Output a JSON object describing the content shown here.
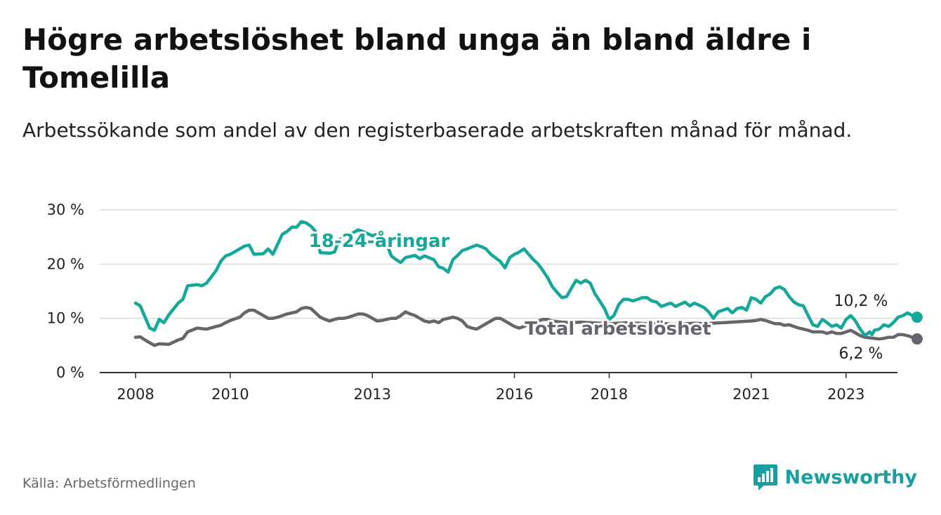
{
  "title": "Högre arbetslöshet bland unga än bland äldre i Tomelilla",
  "subtitle": "Arbetssökande som andel av den registerbaserade arbetskraften månad för månad.",
  "source": "Källa: Arbetsförmedlingen",
  "brand": "Newsworthy",
  "colors": {
    "youth": "#14a89a",
    "total": "#66646c",
    "grid": "#dcdcdc",
    "axis": "#333333",
    "brand": "#1a9fa0"
  },
  "chart_data": {
    "type": "line",
    "title": "Högre arbetslöshet bland unga än bland äldre i Tomelilla",
    "xlabel": "",
    "ylabel": "",
    "xlim": [
      2007.8,
      2023.75
    ],
    "ylim": [
      0,
      30
    ],
    "yticks": [
      0,
      10,
      20,
      30
    ],
    "ytick_labels": [
      "0 %",
      "10 %",
      "20 %",
      "30 %"
    ],
    "xticks": [
      2008,
      2010,
      2013,
      2016,
      2018,
      2021,
      2023
    ],
    "xtick_labels": [
      "2008",
      "2010",
      "2013",
      "2016",
      "2018",
      "2021",
      "2023"
    ],
    "series": [
      {
        "name": "18-24-åringar",
        "label": "18-24-åringar",
        "end_label": "10,2 %",
        "points": [
          [
            2008.0,
            12.8
          ],
          [
            2008.1,
            12.3
          ],
          [
            2008.3,
            8.2
          ],
          [
            2008.4,
            7.8
          ],
          [
            2008.5,
            9.8
          ],
          [
            2008.6,
            9.2
          ],
          [
            2008.7,
            10.6
          ],
          [
            2008.9,
            12.8
          ],
          [
            2009.0,
            13.5
          ],
          [
            2009.1,
            16.0
          ],
          [
            2009.3,
            16.2
          ],
          [
            2009.4,
            16.0
          ],
          [
            2009.5,
            16.5
          ],
          [
            2009.7,
            18.8
          ],
          [
            2009.8,
            20.5
          ],
          [
            2009.9,
            21.5
          ],
          [
            2010.0,
            21.8
          ],
          [
            2010.2,
            22.8
          ],
          [
            2010.3,
            23.3
          ],
          [
            2010.4,
            23.5
          ],
          [
            2010.5,
            21.8
          ],
          [
            2010.7,
            21.9
          ],
          [
            2010.8,
            22.8
          ],
          [
            2010.9,
            21.8
          ],
          [
            2011.1,
            25.5
          ],
          [
            2011.2,
            26.0
          ],
          [
            2011.3,
            26.8
          ],
          [
            2011.4,
            26.8
          ],
          [
            2011.5,
            27.8
          ],
          [
            2011.6,
            27.6
          ],
          [
            2011.7,
            27.0
          ],
          [
            2011.8,
            26.0
          ],
          [
            2011.9,
            22.1
          ],
          [
            2012.1,
            22.0
          ],
          [
            2012.2,
            22.2
          ],
          [
            2012.3,
            24.5
          ],
          [
            2012.5,
            25.4
          ],
          [
            2012.6,
            25.8
          ],
          [
            2012.7,
            26.3
          ],
          [
            2012.8,
            26.0
          ],
          [
            2013.0,
            25.2
          ],
          [
            2013.1,
            25.5
          ],
          [
            2013.3,
            23.8
          ],
          [
            2013.4,
            21.5
          ],
          [
            2013.5,
            20.8
          ],
          [
            2013.6,
            20.3
          ],
          [
            2013.7,
            21.2
          ],
          [
            2013.9,
            21.6
          ],
          [
            2014.0,
            21.0
          ],
          [
            2014.1,
            21.5
          ],
          [
            2014.3,
            20.8
          ],
          [
            2014.4,
            19.5
          ],
          [
            2014.5,
            19.2
          ],
          [
            2014.6,
            18.5
          ],
          [
            2014.7,
            20.8
          ],
          [
            2014.8,
            21.6
          ],
          [
            2014.9,
            22.5
          ],
          [
            2015.0,
            22.8
          ],
          [
            2015.2,
            23.5
          ],
          [
            2015.3,
            23.2
          ],
          [
            2015.4,
            22.8
          ],
          [
            2015.5,
            21.8
          ],
          [
            2015.7,
            20.5
          ],
          [
            2015.8,
            19.3
          ],
          [
            2015.9,
            21.2
          ],
          [
            2016.0,
            21.8
          ],
          [
            2016.1,
            22.2
          ],
          [
            2016.2,
            22.8
          ],
          [
            2016.4,
            20.8
          ],
          [
            2016.5,
            20.0
          ],
          [
            2016.6,
            18.8
          ],
          [
            2016.7,
            17.5
          ],
          [
            2016.8,
            15.8
          ],
          [
            2016.9,
            14.8
          ],
          [
            2017.0,
            13.8
          ],
          [
            2017.1,
            14.0
          ],
          [
            2017.2,
            15.5
          ],
          [
            2017.3,
            17.0
          ],
          [
            2017.4,
            16.5
          ],
          [
            2017.5,
            17.0
          ],
          [
            2017.6,
            16.5
          ],
          [
            2017.7,
            14.5
          ],
          [
            2017.8,
            13.2
          ],
          [
            2017.9,
            11.8
          ],
          [
            2018.0,
            9.8
          ],
          [
            2018.1,
            10.5
          ],
          [
            2018.2,
            12.5
          ],
          [
            2018.3,
            13.5
          ],
          [
            2018.4,
            13.5
          ],
          [
            2018.5,
            13.2
          ],
          [
            2018.6,
            13.5
          ],
          [
            2018.7,
            13.8
          ],
          [
            2018.8,
            13.8
          ],
          [
            2018.9,
            13.2
          ],
          [
            2019.0,
            13.0
          ],
          [
            2019.1,
            12.2
          ],
          [
            2019.2,
            12.5
          ],
          [
            2019.3,
            12.8
          ],
          [
            2019.4,
            12.2
          ],
          [
            2019.5,
            12.6
          ],
          [
            2019.6,
            13.0
          ],
          [
            2019.7,
            12.3
          ],
          [
            2019.8,
            12.8
          ],
          [
            2019.9,
            12.4
          ],
          [
            2020.0,
            12.0
          ],
          [
            2020.1,
            11.2
          ],
          [
            2020.2,
            10.0
          ],
          [
            2020.3,
            11.2
          ],
          [
            2020.4,
            11.5
          ],
          [
            2020.5,
            11.8
          ],
          [
            2020.6,
            11.0
          ],
          [
            2020.7,
            11.8
          ],
          [
            2020.8,
            12.0
          ],
          [
            2020.9,
            11.5
          ],
          [
            2021.0,
            13.8
          ],
          [
            2021.1,
            13.5
          ],
          [
            2021.2,
            12.8
          ],
          [
            2021.3,
            14.0
          ],
          [
            2021.4,
            14.5
          ],
          [
            2021.5,
            15.5
          ],
          [
            2021.6,
            15.8
          ],
          [
            2021.7,
            15.3
          ],
          [
            2021.8,
            14.0
          ],
          [
            2021.9,
            13.0
          ],
          [
            2022.0,
            12.5
          ],
          [
            2022.1,
            12.3
          ],
          [
            2022.2,
            10.5
          ],
          [
            2022.3,
            8.8
          ],
          [
            2022.4,
            8.5
          ],
          [
            2022.5,
            9.8
          ],
          [
            2022.6,
            9.2
          ],
          [
            2022.7,
            8.5
          ],
          [
            2022.8,
            8.8
          ],
          [
            2022.9,
            8.2
          ],
          [
            2023.0,
            9.8
          ],
          [
            2023.1,
            10.5
          ],
          [
            2023.2,
            9.5
          ],
          [
            2023.3,
            8.0
          ],
          [
            2023.4,
            6.8
          ],
          [
            2023.5,
            7.5
          ],
          [
            2023.55,
            7.0
          ],
          [
            2023.6,
            7.8
          ],
          [
            2023.7,
            8.0
          ],
          [
            2023.8,
            8.8
          ],
          [
            2023.9,
            8.5
          ],
          [
            2024.0,
            9.2
          ],
          [
            2024.1,
            10.2
          ],
          [
            2024.2,
            10.5
          ],
          [
            2024.3,
            11.0
          ],
          [
            2024.4,
            10.5
          ],
          [
            2024.5,
            10.2
          ]
        ]
      },
      {
        "name": "Total arbetslöshet",
        "label": "Total arbetslöshet",
        "end_label": "6,2 %",
        "points": [
          [
            2008.0,
            6.5
          ],
          [
            2008.1,
            6.6
          ],
          [
            2008.2,
            6.0
          ],
          [
            2008.3,
            5.5
          ],
          [
            2008.4,
            5.0
          ],
          [
            2008.5,
            5.3
          ],
          [
            2008.7,
            5.2
          ],
          [
            2008.8,
            5.6
          ],
          [
            2008.9,
            6.0
          ],
          [
            2009.0,
            6.3
          ],
          [
            2009.1,
            7.5
          ],
          [
            2009.3,
            8.2
          ],
          [
            2009.4,
            8.1
          ],
          [
            2009.5,
            8.0
          ],
          [
            2009.7,
            8.5
          ],
          [
            2009.8,
            8.7
          ],
          [
            2009.9,
            9.2
          ],
          [
            2010.0,
            9.6
          ],
          [
            2010.2,
            10.2
          ],
          [
            2010.3,
            11.0
          ],
          [
            2010.4,
            11.5
          ],
          [
            2010.5,
            11.5
          ],
          [
            2010.7,
            10.5
          ],
          [
            2010.8,
            10.0
          ],
          [
            2010.9,
            10.0
          ],
          [
            2011.0,
            10.2
          ],
          [
            2011.2,
            10.8
          ],
          [
            2011.3,
            11.0
          ],
          [
            2011.4,
            11.2
          ],
          [
            2011.5,
            11.8
          ],
          [
            2011.6,
            12.0
          ],
          [
            2011.7,
            11.8
          ],
          [
            2011.8,
            11.0
          ],
          [
            2011.9,
            10.2
          ],
          [
            2012.0,
            9.8
          ],
          [
            2012.1,
            9.5
          ],
          [
            2012.2,
            9.8
          ],
          [
            2012.3,
            10.0
          ],
          [
            2012.4,
            10.0
          ],
          [
            2012.5,
            10.2
          ],
          [
            2012.6,
            10.5
          ],
          [
            2012.7,
            10.8
          ],
          [
            2012.8,
            10.8
          ],
          [
            2012.9,
            10.5
          ],
          [
            2013.0,
            10.0
          ],
          [
            2013.1,
            9.5
          ],
          [
            2013.2,
            9.6
          ],
          [
            2013.3,
            9.8
          ],
          [
            2013.4,
            10.0
          ],
          [
            2013.5,
            10.0
          ],
          [
            2013.6,
            10.5
          ],
          [
            2013.7,
            11.2
          ],
          [
            2013.8,
            10.8
          ],
          [
            2013.9,
            10.5
          ],
          [
            2014.0,
            10.0
          ],
          [
            2014.1,
            9.5
          ],
          [
            2014.2,
            9.3
          ],
          [
            2014.3,
            9.5
          ],
          [
            2014.4,
            9.2
          ],
          [
            2014.5,
            9.8
          ],
          [
            2014.6,
            10.0
          ],
          [
            2014.7,
            10.2
          ],
          [
            2014.8,
            10.0
          ],
          [
            2014.9,
            9.5
          ],
          [
            2015.0,
            8.5
          ],
          [
            2015.1,
            8.2
          ],
          [
            2015.2,
            8.0
          ],
          [
            2015.3,
            8.5
          ],
          [
            2015.4,
            9.0
          ],
          [
            2015.5,
            9.5
          ],
          [
            2015.6,
            10.0
          ],
          [
            2015.7,
            10.0
          ],
          [
            2015.8,
            9.5
          ],
          [
            2015.9,
            9.0
          ],
          [
            2016.0,
            8.5
          ],
          [
            2016.1,
            8.2
          ],
          [
            2016.2,
            8.5
          ],
          [
            2016.3,
            9.0
          ],
          [
            2016.4,
            9.2
          ],
          [
            2016.5,
            9.5
          ],
          [
            2016.6,
            9.8
          ],
          [
            2016.7,
            9.8
          ],
          [
            2016.8,
            9.5
          ],
          [
            2016.9,
            9.4
          ],
          [
            2017.0,
            9.3
          ],
          [
            2017.2,
            9.2
          ],
          [
            2017.4,
            9.3
          ],
          [
            2017.6,
            9.2
          ],
          [
            2017.8,
            9.1
          ],
          [
            2018.0,
            9.0
          ],
          [
            2018.2,
            9.1
          ],
          [
            2018.4,
            9.2
          ],
          [
            2018.6,
            9.1
          ],
          [
            2018.8,
            9.0
          ],
          [
            2019.0,
            9.1
          ],
          [
            2019.2,
            9.0
          ],
          [
            2019.4,
            8.9
          ],
          [
            2019.6,
            9.0
          ],
          [
            2019.8,
            9.1
          ],
          [
            2020.0,
            9.0
          ],
          [
            2020.2,
            9.1
          ],
          [
            2020.4,
            9.2
          ],
          [
            2020.6,
            9.3
          ],
          [
            2020.8,
            9.4
          ],
          [
            2021.0,
            9.5
          ],
          [
            2021.1,
            9.6
          ],
          [
            2021.2,
            9.8
          ],
          [
            2021.3,
            9.6
          ],
          [
            2021.4,
            9.3
          ],
          [
            2021.5,
            9.0
          ],
          [
            2021.6,
            9.0
          ],
          [
            2021.7,
            8.7
          ],
          [
            2021.8,
            8.8
          ],
          [
            2021.9,
            8.5
          ],
          [
            2022.0,
            8.2
          ],
          [
            2022.1,
            8.0
          ],
          [
            2022.2,
            7.8
          ],
          [
            2022.3,
            7.5
          ],
          [
            2022.4,
            7.5
          ],
          [
            2022.5,
            7.5
          ],
          [
            2022.6,
            7.2
          ],
          [
            2022.7,
            7.5
          ],
          [
            2022.8,
            7.2
          ],
          [
            2022.9,
            7.2
          ],
          [
            2023.0,
            7.5
          ],
          [
            2023.1,
            7.8
          ],
          [
            2023.2,
            7.3
          ],
          [
            2023.3,
            6.8
          ],
          [
            2023.4,
            6.5
          ],
          [
            2023.5,
            6.4
          ],
          [
            2023.6,
            6.3
          ],
          [
            2023.7,
            6.2
          ],
          [
            2023.8,
            6.3
          ],
          [
            2023.9,
            6.5
          ],
          [
            2024.0,
            6.5
          ],
          [
            2024.1,
            7.0
          ],
          [
            2024.2,
            7.0
          ],
          [
            2024.3,
            6.8
          ],
          [
            2024.4,
            6.5
          ],
          [
            2024.5,
            6.2
          ]
        ]
      }
    ]
  }
}
